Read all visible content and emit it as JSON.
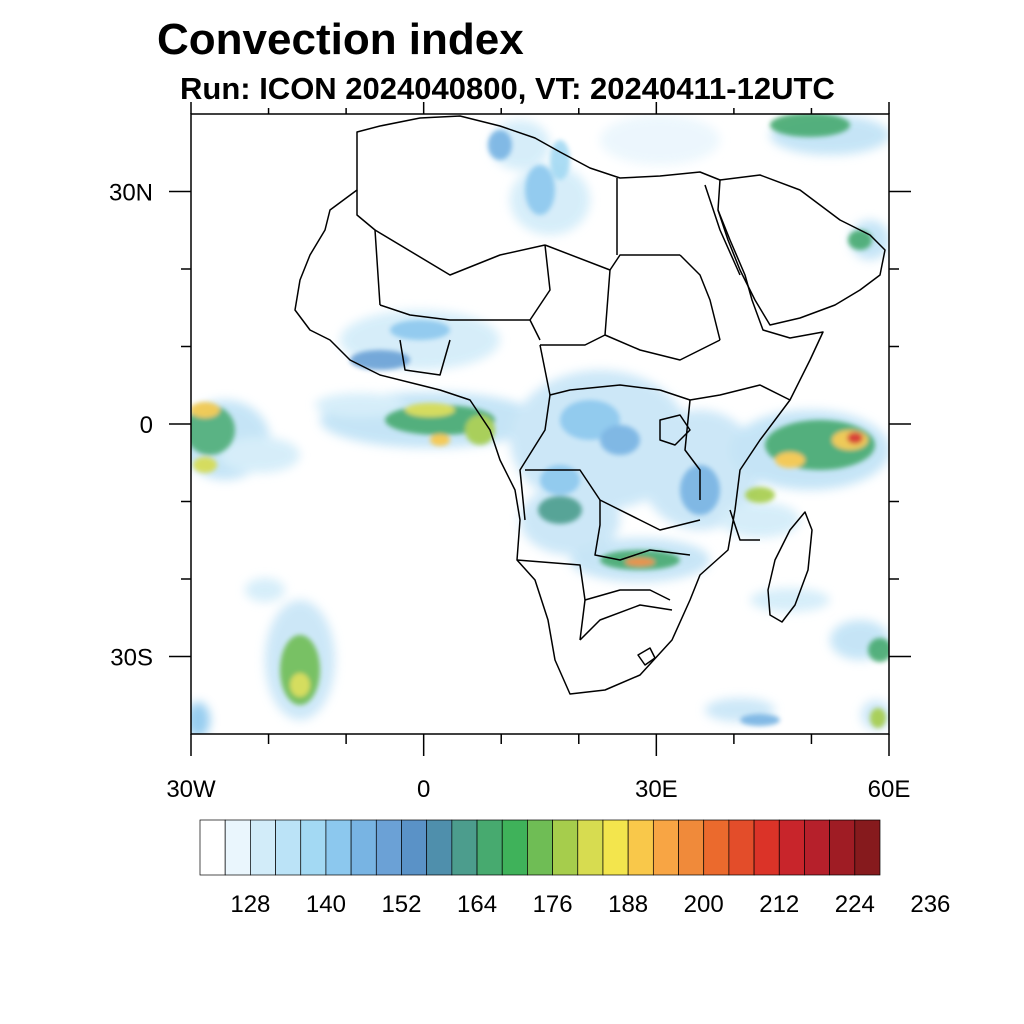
{
  "header": {
    "title": "Convection index",
    "subtitle": "Run: ICON 2024040800,  VT: 20240411-12UTC"
  },
  "map": {
    "lon_range": [
      -30,
      60
    ],
    "lat_range": [
      -40,
      40
    ],
    "lon_ticks": [
      {
        "value": -30,
        "label": "30W"
      },
      {
        "value": 0,
        "label": "0"
      },
      {
        "value": 30,
        "label": "30E"
      },
      {
        "value": 60,
        "label": "60E"
      }
    ],
    "lat_ticks": [
      {
        "value": 30,
        "label": "30N"
      },
      {
        "value": 0,
        "label": "0"
      },
      {
        "value": -30,
        "label": "30S"
      }
    ],
    "minor_lon_ticks": [
      -20,
      -10,
      10,
      20,
      40,
      50
    ],
    "minor_lat_ticks": [
      20,
      10,
      -10,
      -20
    ]
  },
  "colorbar": {
    "labels": [
      "128",
      "140",
      "152",
      "164",
      "176",
      "188",
      "200",
      "212",
      "224",
      "236"
    ],
    "colors": [
      "#ffffff",
      "#eaf6fd",
      "#d2ecf9",
      "#bbe3f7",
      "#a3d9f3",
      "#8cc8ee",
      "#78b4e3",
      "#6ba1d6",
      "#5a92c7",
      "#4f8fac",
      "#4c9d8d",
      "#47aa6f",
      "#3fb25a",
      "#6fbd55",
      "#a6cd4c",
      "#d7dc50",
      "#f3e54d",
      "#f9c84a",
      "#f8a544",
      "#f08a3a",
      "#eb6a2d",
      "#e34d2a",
      "#db3328",
      "#c8252b",
      "#b6202b",
      "#9f1c24",
      "#861a1d"
    ]
  }
}
